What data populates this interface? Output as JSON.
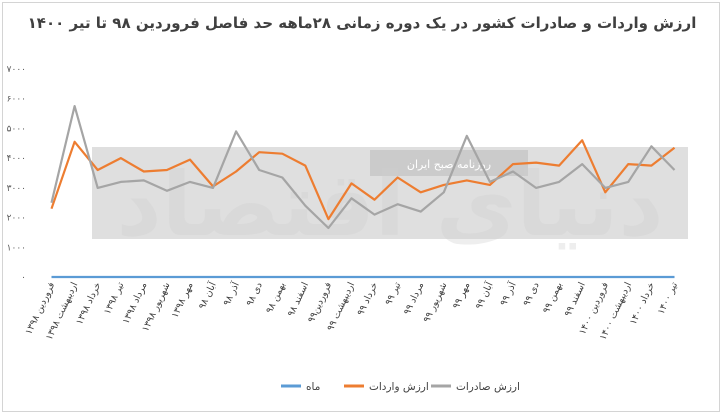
{
  "title": "ارزش واردات و صادرات کشور در یک دوره زمانی ۲۸ماهه حد فاصل فروردین ۹۸ تا تیر ۱۴۰۰",
  "watermark": "دنیای اقتصاد",
  "watermark_sub": "روزنامه صبح ایران",
  "colors": {
    "mah": "#5b9bd5",
    "varedat": "#ed7d31",
    "saderat": "#a5a5a5",
    "band": "#d9d9d9"
  },
  "chart_data": {
    "type": "line",
    "ylim": [
      0,
      7000
    ],
    "yticks": [
      "۰",
      "۱۰۰۰",
      "۲۰۰۰",
      "۳۰۰۰",
      "۴۰۰۰",
      "۵۰۰۰",
      "۶۰۰۰",
      "۷۰۰۰"
    ],
    "ytick_values": [
      0,
      1000,
      2000,
      3000,
      4000,
      5000,
      6000,
      7000
    ],
    "categories": [
      "فروردین ۱۳۹۸",
      "اردیبهشت ۱۳۹۸",
      "خرداد ۱۳۹۸",
      "تیر ۱۳۹۸",
      "مرداد ۱۳۹۸",
      "شهریور ۱۳۹۸",
      "مهر ۱۳۹۸",
      "آبان ۹۸",
      "آذر ۹۸",
      "دی ۹۸",
      "بهمن ۹۸",
      "اسفند ۹۸",
      "فروردین۹۹",
      "اردیبهشت ۹۹",
      "خرداد ۹۹",
      "تیر ۹۹",
      "مرداد ۹۹",
      "شهریور ۹۹",
      "مهر ۹۹",
      "آبان ۹۹",
      "آذر ۹۹",
      "دی ۹۹",
      "بهمن ۹۹",
      "اسفند ۹۹",
      "فروردین ۱۴۰۰",
      "اردیبهشت ۱۴۰۰",
      "خرداد ۱۴۰۰",
      "تیر ۱۴۰۰"
    ],
    "series": [
      {
        "name": "ماه",
        "color_key": "mah",
        "values": [
          0,
          0,
          0,
          0,
          0,
          0,
          0,
          0,
          0,
          0,
          0,
          0,
          0,
          0,
          0,
          0,
          0,
          0,
          0,
          0,
          0,
          0,
          0,
          0,
          0,
          0,
          0,
          0
        ]
      },
      {
        "name": "ارزش واردات",
        "color_key": "varedat",
        "values": [
          2300,
          4550,
          3600,
          4000,
          3550,
          3600,
          3950,
          3050,
          3550,
          4200,
          4150,
          3750,
          1950,
          3150,
          2600,
          3350,
          2850,
          3100,
          3250,
          3100,
          3800,
          3850,
          3750,
          4600,
          2850,
          3800,
          3750,
          4350
        ]
      },
      {
        "name": "ارزش صادرات",
        "color_key": "saderat",
        "values": [
          2500,
          5750,
          3000,
          3200,
          3250,
          2900,
          3200,
          3000,
          4900,
          3600,
          3350,
          2400,
          1650,
          2650,
          2100,
          2450,
          2200,
          2850,
          4750,
          3200,
          3550,
          3000,
          3200,
          3800,
          3000,
          3200,
          4400,
          3600
        ]
      }
    ],
    "legend": [
      "ماه",
      "ارزش واردات",
      "ارزش صادرات"
    ],
    "legend_position": "bottom",
    "grid": false
  }
}
